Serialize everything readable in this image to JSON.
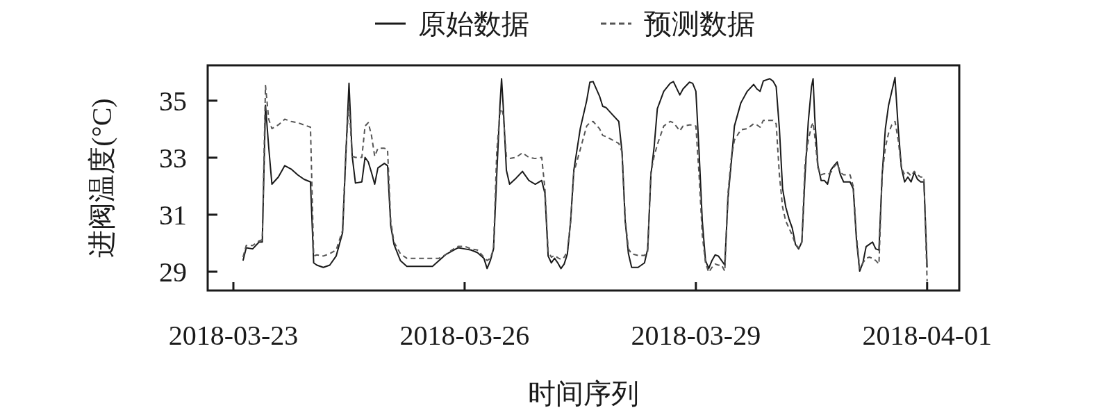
{
  "chart_data": {
    "type": "line",
    "xlabel": "时间序列",
    "ylabel": "进阀温度(°C)",
    "legend": "top",
    "xlim": [
      "2018-03-22T16:00",
      "2018-04-01T10:00"
    ],
    "ylim": [
      28.34,
      36.24
    ],
    "xticks": [
      "2018-03-23",
      "2018-03-26",
      "2018-03-29",
      "2018-04-01"
    ],
    "yticks": [
      29,
      31,
      33,
      35
    ],
    "x": [
      "2018-03-23T03:00",
      "2018-03-23T04:00",
      "2018-03-23T06:00",
      "2018-03-23T08:00",
      "2018-03-23T09:00",
      "2018-03-23T10:00",
      "2018-03-23T11:00",
      "2018-03-23T12:00",
      "2018-03-23T14:00",
      "2018-03-23T16:00",
      "2018-03-23T18:00",
      "2018-03-23T20:00",
      "2018-03-23T22:00",
      "2018-03-24T00:00",
      "2018-03-24T01:00",
      "2018-03-24T02:00",
      "2018-03-24T04:00",
      "2018-03-24T06:00",
      "2018-03-24T08:00",
      "2018-03-24T10:00",
      "2018-03-24T11:00",
      "2018-03-24T12:00",
      "2018-03-24T13:00",
      "2018-03-24T14:00",
      "2018-03-24T16:00",
      "2018-03-24T17:00",
      "2018-03-24T18:00",
      "2018-03-24T19:00",
      "2018-03-24T20:00",
      "2018-03-24T21:00",
      "2018-03-24T23:00",
      "2018-03-25T00:00",
      "2018-03-25T01:00",
      "2018-03-25T02:00",
      "2018-03-25T04:00",
      "2018-03-25T06:00",
      "2018-03-25T10:00",
      "2018-03-25T14:00",
      "2018-03-25T16:00",
      "2018-03-25T18:00",
      "2018-03-25T20:00",
      "2018-03-25T22:00",
      "2018-03-26T00:00",
      "2018-03-26T02:00",
      "2018-03-26T04:00",
      "2018-03-26T06:00",
      "2018-03-26T07:00",
      "2018-03-26T08:00",
      "2018-03-26T09:00",
      "2018-03-26T10:00",
      "2018-03-26T11:00",
      "2018-03-26T11:30",
      "2018-03-26T12:00",
      "2018-03-26T13:00",
      "2018-03-26T14:00",
      "2018-03-26T16:00",
      "2018-03-26T18:00",
      "2018-03-26T20:00",
      "2018-03-26T22:00",
      "2018-03-27T00:00",
      "2018-03-27T01:00",
      "2018-03-27T02:00",
      "2018-03-27T03:00",
      "2018-03-27T04:00",
      "2018-03-27T05:00",
      "2018-03-27T06:00",
      "2018-03-27T07:00",
      "2018-03-27T08:00",
      "2018-03-27T09:00",
      "2018-03-27T10:00",
      "2018-03-27T12:00",
      "2018-03-27T14:00",
      "2018-03-27T15:00",
      "2018-03-27T16:00",
      "2018-03-27T18:00",
      "2018-03-27T19:00",
      "2018-03-27T20:00",
      "2018-03-27T22:00",
      "2018-03-28T00:00",
      "2018-03-28T01:00",
      "2018-03-28T02:00",
      "2018-03-28T03:00",
      "2018-03-28T04:00",
      "2018-03-28T06:00",
      "2018-03-28T08:00",
      "2018-03-28T09:00",
      "2018-03-28T10:00",
      "2018-03-28T11:00",
      "2018-03-28T12:00",
      "2018-03-28T14:00",
      "2018-03-28T16:00",
      "2018-03-28T17:00",
      "2018-03-28T19:00",
      "2018-03-28T20:00",
      "2018-03-28T22:00",
      "2018-03-28T23:00",
      "2018-03-29T00:00",
      "2018-03-29T01:00",
      "2018-03-29T02:00",
      "2018-03-29T03:00",
      "2018-03-29T04:00",
      "2018-03-29T05:00",
      "2018-03-29T06:00",
      "2018-03-29T07:00",
      "2018-03-29T08:00",
      "2018-03-29T09:00",
      "2018-03-29T10:00",
      "2018-03-29T11:00",
      "2018-03-29T12:00",
      "2018-03-29T14:00",
      "2018-03-29T16:00",
      "2018-03-29T18:00",
      "2018-03-29T19:00",
      "2018-03-29T20:00",
      "2018-03-29T21:00",
      "2018-03-29T22:00",
      "2018-03-29T23:00",
      "2018-03-30T00:00",
      "2018-03-30T01:00",
      "2018-03-30T02:00",
      "2018-03-30T03:00",
      "2018-03-30T04:00",
      "2018-03-30T05:00",
      "2018-03-30T06:00",
      "2018-03-30T07:00",
      "2018-03-30T08:00",
      "2018-03-30T09:00",
      "2018-03-30T10:00",
      "2018-03-30T11:00",
      "2018-03-30T12:00",
      "2018-03-30T12:30",
      "2018-03-30T13:00",
      "2018-03-30T14:00",
      "2018-03-30T15:00",
      "2018-03-30T16:00",
      "2018-03-30T17:00",
      "2018-03-30T18:00",
      "2018-03-30T19:00",
      "2018-03-30T20:00",
      "2018-03-30T21:00",
      "2018-03-30T22:00",
      "2018-03-31T00:00",
      "2018-03-31T01:00",
      "2018-03-31T02:00",
      "2018-03-31T03:00",
      "2018-03-31T04:00",
      "2018-03-31T05:00",
      "2018-03-31T06:00",
      "2018-03-31T07:00",
      "2018-03-31T08:00",
      "2018-03-31T09:00",
      "2018-03-31T10:00",
      "2018-03-31T11:00",
      "2018-03-31T12:00",
      "2018-03-31T13:00",
      "2018-03-31T14:00",
      "2018-03-31T15:00",
      "2018-03-31T16:00",
      "2018-03-31T17:00",
      "2018-03-31T18:00",
      "2018-03-31T19:00",
      "2018-03-31T20:00",
      "2018-03-31T21:00",
      "2018-03-31T22:00",
      "2018-03-31T23:00",
      "2018-04-01T00:00"
    ],
    "series": [
      {
        "name": "原始数据",
        "color": "#1a1a1a",
        "line_style": "solid",
        "values": [
          29.39,
          29.84,
          29.8,
          30.04,
          30.04,
          34.84,
          33.37,
          32.07,
          32.32,
          32.72,
          32.6,
          32.4,
          32.24,
          32.15,
          29.31,
          29.23,
          29.15,
          29.23,
          29.55,
          30.37,
          33.05,
          35.61,
          33.05,
          32.11,
          32.15,
          33.01,
          32.85,
          32.48,
          32.07,
          32.64,
          32.8,
          32.72,
          30.61,
          29.96,
          29.39,
          29.19,
          29.19,
          29.19,
          29.39,
          29.59,
          29.72,
          29.84,
          29.8,
          29.76,
          29.67,
          29.47,
          29.11,
          29.39,
          29.8,
          32.4,
          34.84,
          35.77,
          34.84,
          32.56,
          32.07,
          32.28,
          32.52,
          32.2,
          32.07,
          32.2,
          31.75,
          29.55,
          29.31,
          29.47,
          29.31,
          29.11,
          29.27,
          29.63,
          30.77,
          32.56,
          34.02,
          35.0,
          35.65,
          35.67,
          35.16,
          34.8,
          34.76,
          34.51,
          34.27,
          33.21,
          30.77,
          29.63,
          29.15,
          29.15,
          29.31,
          29.8,
          32.4,
          33.37,
          34.72,
          35.33,
          35.61,
          35.67,
          35.2,
          35.41,
          35.65,
          35.61,
          35.33,
          33.21,
          30.77,
          29.39,
          29.11,
          29.39,
          29.59,
          29.55,
          29.39,
          29.23,
          31.59,
          32.8,
          34.11,
          34.92,
          35.33,
          35.57,
          35.41,
          35.33,
          35.69,
          35.73,
          35.77,
          35.69,
          35.49,
          34.02,
          31.91,
          31.26,
          30.85,
          30.53,
          29.96,
          29.8,
          30.04,
          32.4,
          34.27,
          35.49,
          35.77,
          34.43,
          32.72,
          32.2,
          32.2,
          32.07,
          32.56,
          32.72,
          32.85,
          32.4,
          32.15,
          32.15,
          31.91,
          30.12,
          29.02,
          29.31,
          29.88,
          29.96,
          30.04,
          29.8,
          29.76,
          32.4,
          34.02,
          34.84,
          35.33,
          35.81,
          34.02,
          32.64,
          32.15,
          32.32,
          32.15,
          32.48,
          32.24,
          32.15,
          32.15,
          29.15
        ]
      },
      {
        "name": "预测数据",
        "color": "#555555",
        "line_style": "dashed",
        "values": [
          29.51,
          29.92,
          29.92,
          30.08,
          30.12,
          35.53,
          34.35,
          34.02,
          34.15,
          34.35,
          34.27,
          34.23,
          34.15,
          34.07,
          29.55,
          29.59,
          29.55,
          29.63,
          29.76,
          30.45,
          33.21,
          34.92,
          33.05,
          33.01,
          33.01,
          34.11,
          34.23,
          33.78,
          33.05,
          33.33,
          33.33,
          33.29,
          30.77,
          30.04,
          29.63,
          29.47,
          29.47,
          29.47,
          29.47,
          29.59,
          29.76,
          29.89,
          29.89,
          29.8,
          29.76,
          29.51,
          29.39,
          29.47,
          29.8,
          33.21,
          34.59,
          34.72,
          34.51,
          33.05,
          32.97,
          33.01,
          33.17,
          33.01,
          32.97,
          33.01,
          31.91,
          29.72,
          29.51,
          29.57,
          29.49,
          29.43,
          29.51,
          29.72,
          30.77,
          32.48,
          33.29,
          34.11,
          34.23,
          34.27,
          34.02,
          33.78,
          33.74,
          33.62,
          33.5,
          33.21,
          30.85,
          29.8,
          29.63,
          29.57,
          29.57,
          29.72,
          32.48,
          33.05,
          33.46,
          34.11,
          34.27,
          34.23,
          33.94,
          34.11,
          34.15,
          34.15,
          34.11,
          32.4,
          30.28,
          29.31,
          28.98,
          29.15,
          29.27,
          29.23,
          29.23,
          29.02,
          31.75,
          32.97,
          33.62,
          33.98,
          34.02,
          34.19,
          34.15,
          34.07,
          34.31,
          34.31,
          34.31,
          34.31,
          34.19,
          32.4,
          31.26,
          30.77,
          30.53,
          30.28,
          29.96,
          29.84,
          30.04,
          32.8,
          33.62,
          34.11,
          34.23,
          33.78,
          32.64,
          32.4,
          32.44,
          32.4,
          32.48,
          32.68,
          32.8,
          32.48,
          32.4,
          32.4,
          31.99,
          30.28,
          29.11,
          29.31,
          29.47,
          29.51,
          29.47,
          29.39,
          29.27,
          32.4,
          33.37,
          33.86,
          34.15,
          34.27,
          33.62,
          32.64,
          32.4,
          32.48,
          32.36,
          32.52,
          32.4,
          32.32,
          32.32,
          28.66
        ]
      }
    ]
  }
}
